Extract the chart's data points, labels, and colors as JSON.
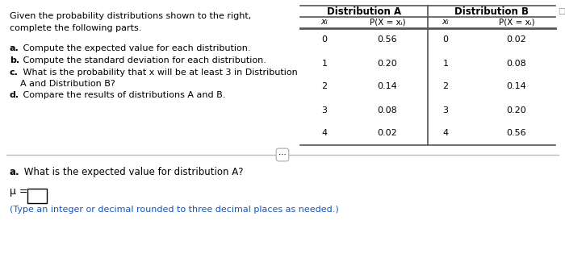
{
  "bg_color": "#ffffff",
  "intro_line1": "Given the probability distributions shown to the right,",
  "intro_line2": "complete the following parts.",
  "items": [
    {
      "bold": "a.",
      "text": " Compute the expected value for each distribution."
    },
    {
      "bold": "b.",
      "text": " Compute the standard deviation for each distribution."
    },
    {
      "bold": "c.",
      "text": " What is the probability that x will be at least 3 in Distribution"
    },
    {
      "bold": "",
      "text": "A and Distribution B?"
    },
    {
      "bold": "d.",
      "text": " Compare the results of distributions A and B."
    }
  ],
  "dist_a_header": "Distribution A",
  "dist_b_header": "Distribution B",
  "xi_values": [
    0,
    1,
    2,
    3,
    4
  ],
  "dist_a_probs": [
    "0.56",
    "0.20",
    "0.14",
    "0.08",
    "0.02"
  ],
  "dist_b_probs": [
    "0.02",
    "0.08",
    "0.14",
    "0.20",
    "0.56"
  ],
  "bottom_bold": "a.",
  "bottom_text": " What is the expected value for distribution A?",
  "mu_label": "μ =",
  "hint_text": "(Type an integer or decimal rounded to three decimal places as needed.)",
  "hint_color": "#1155cc",
  "divider_color": "#bbbbbb",
  "table_line_color": "#555555",
  "icon_color": "#888888"
}
